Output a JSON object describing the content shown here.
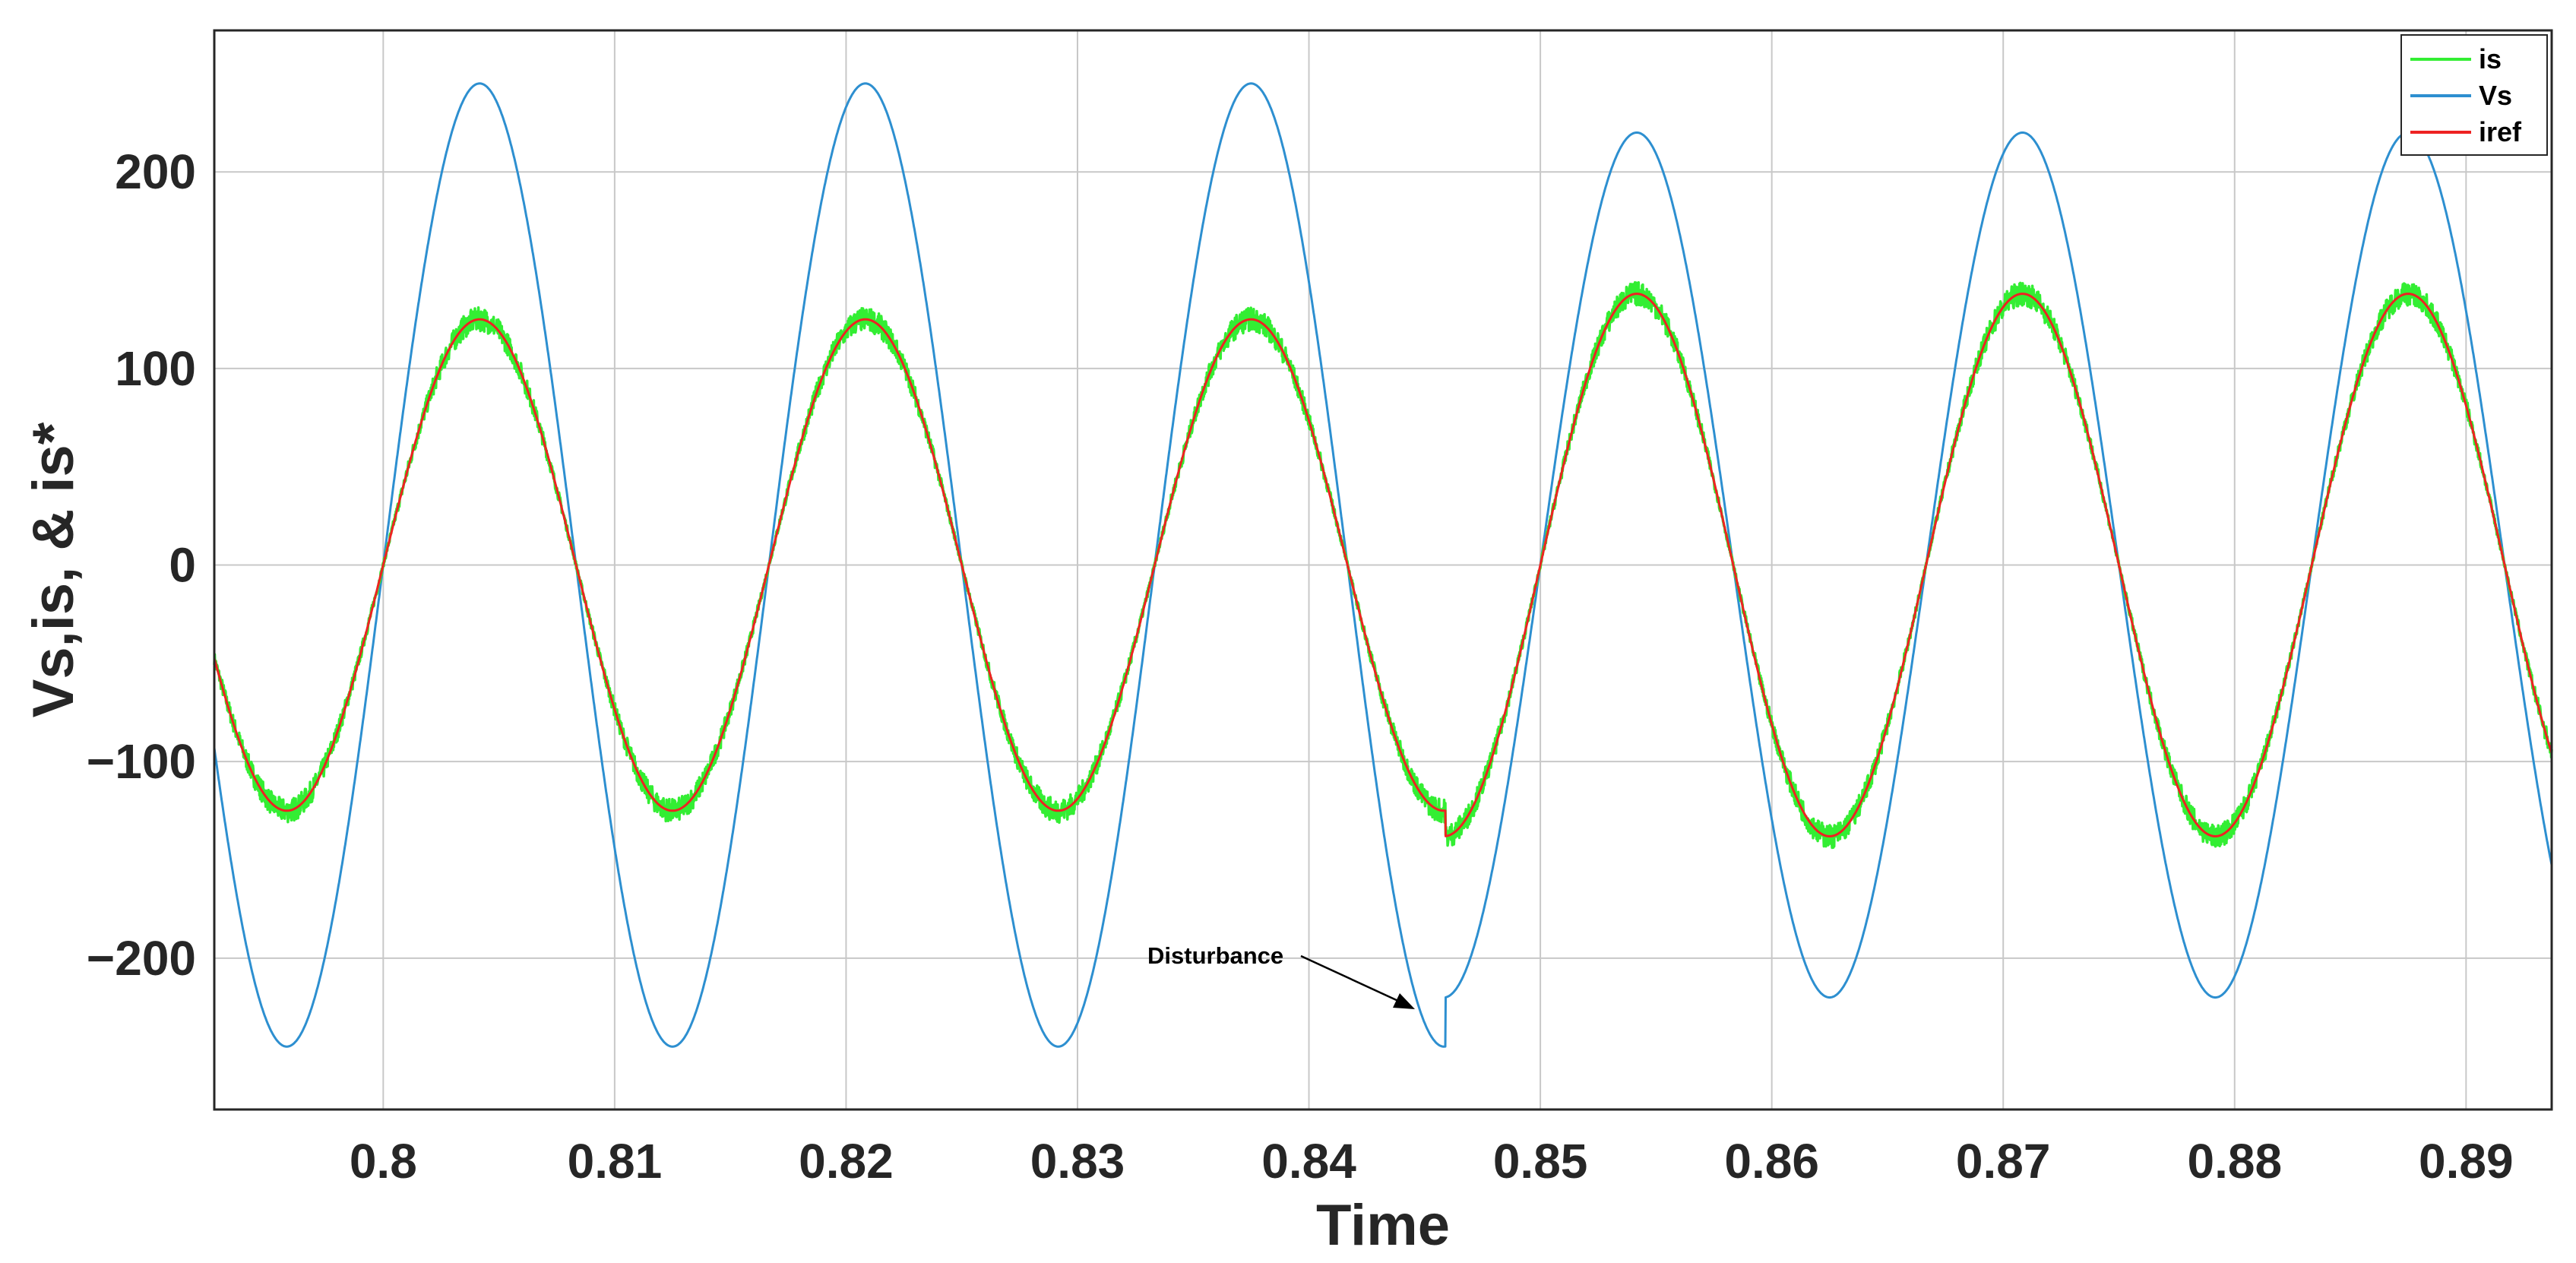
{
  "chart_data": {
    "type": "line",
    "title": "",
    "xlabel": "Time",
    "ylabel": "Vs,is, & is*",
    "xlim": [
      0.7927,
      0.8937
    ],
    "ylim": [
      -277,
      272
    ],
    "xticks": [
      0.8,
      0.81,
      0.82,
      0.83,
      0.84,
      0.85,
      0.86,
      0.87,
      0.88,
      0.89
    ],
    "xtick_labels": [
      "0.8",
      "0.81",
      "0.82",
      "0.83",
      "0.84",
      "0.85",
      "0.86",
      "0.87",
      "0.88",
      "0.89"
    ],
    "yticks": [
      -200,
      -100,
      0,
      100,
      200
    ],
    "ytick_labels": [
      "−200",
      "−100",
      "0",
      "100",
      "200"
    ],
    "grid": true,
    "legend_position": "top-right",
    "frequency_hz": 60,
    "disturbance_time": 0.8459,
    "series": [
      {
        "name": "is",
        "color": "#33ee33",
        "amplitude_before": 125,
        "amplitude_after": 138,
        "noisy": true
      },
      {
        "name": "Vs",
        "color": "#2d8fd0",
        "amplitude_before": 245,
        "amplitude_after": 220,
        "noisy": false
      },
      {
        "name": "iref",
        "color": "#ee2222",
        "amplitude_before": 125,
        "amplitude_after": 138,
        "noisy": false
      }
    ],
    "annotations": [
      {
        "text": "Disturbance",
        "x": 0.8459,
        "y": -225
      }
    ]
  }
}
